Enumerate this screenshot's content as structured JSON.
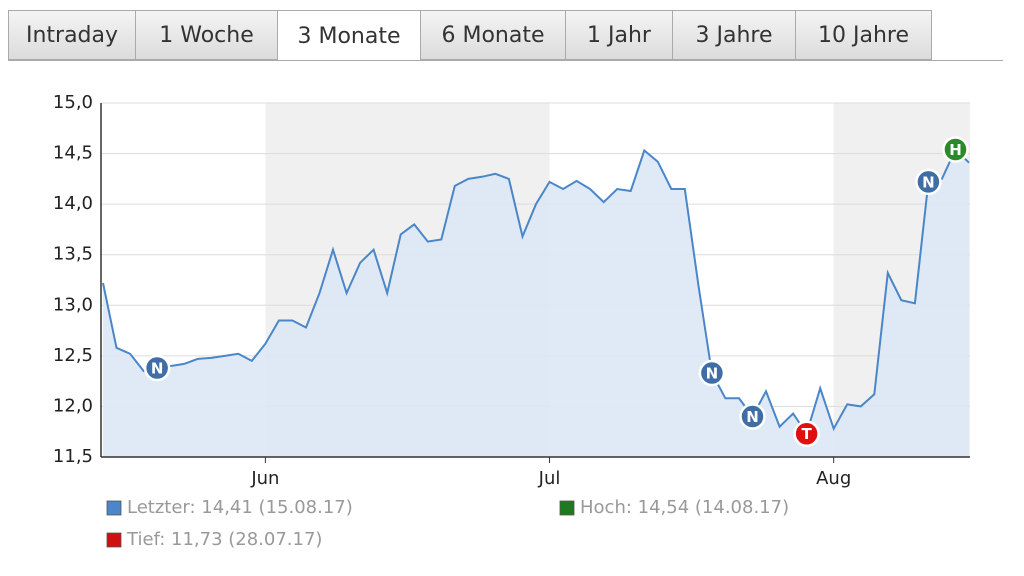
{
  "tabs": [
    "Intraday",
    "1 Woche",
    "3 Monate",
    "6 Monate",
    "1 Jahr",
    "3 Jahre",
    "10 Jahre"
  ],
  "active_tab": "3 Monate",
  "chart_data": {
    "type": "area",
    "color": "#4a86c8",
    "fill": "#dce8f5",
    "band_color": "#f0f0f0",
    "grid": true,
    "ylim": [
      11.5,
      15.0
    ],
    "yticks": [
      {
        "value": 11.5,
        "label": "11,5"
      },
      {
        "value": 12.0,
        "label": "12,0"
      },
      {
        "value": 12.5,
        "label": "12,5"
      },
      {
        "value": 13.0,
        "label": "13,0"
      },
      {
        "value": 13.5,
        "label": "13,5"
      },
      {
        "value": 14.0,
        "label": "14,0"
      },
      {
        "value": 14.5,
        "label": "14,5"
      },
      {
        "value": 15.0,
        "label": "15,0"
      }
    ],
    "categories": [
      null,
      null,
      null,
      null,
      null,
      null,
      null,
      null,
      null,
      null,
      null,
      null,
      "Jun",
      null,
      null,
      null,
      null,
      null,
      null,
      null,
      null,
      null,
      null,
      null,
      null,
      null,
      null,
      null,
      null,
      null,
      null,
      null,
      null,
      "Jul",
      null,
      null,
      null,
      null,
      null,
      null,
      null,
      null,
      null,
      null,
      null,
      null,
      null,
      null,
      null,
      null,
      null,
      null,
      null,
      null,
      "Aug",
      null,
      null,
      null,
      null,
      null,
      null,
      null,
      null,
      null,
      null
    ],
    "values": [
      13.22,
      12.58,
      12.52,
      12.35,
      12.38,
      12.4,
      12.42,
      12.47,
      12.48,
      12.5,
      12.52,
      12.45,
      12.62,
      12.85,
      12.85,
      12.78,
      13.12,
      13.55,
      13.12,
      13.42,
      13.55,
      13.12,
      13.7,
      13.8,
      13.63,
      13.65,
      14.18,
      14.25,
      14.27,
      14.3,
      14.25,
      13.68,
      14.0,
      14.22,
      14.15,
      14.23,
      14.15,
      14.02,
      14.15,
      14.13,
      14.53,
      14.42,
      14.15,
      14.15,
      13.2,
      12.33,
      12.08,
      12.08,
      11.9,
      12.15,
      11.8,
      11.93,
      11.73,
      12.18,
      11.78,
      12.02,
      12.0,
      12.12,
      13.32,
      13.05,
      13.02,
      14.22,
      14.25,
      14.54,
      14.41
    ],
    "point_labels": [
      null,
      null,
      null,
      null,
      "N",
      null,
      null,
      null,
      null,
      null,
      null,
      null,
      null,
      null,
      null,
      null,
      null,
      null,
      null,
      null,
      null,
      null,
      null,
      null,
      null,
      null,
      null,
      null,
      null,
      null,
      null,
      null,
      null,
      null,
      null,
      null,
      null,
      null,
      null,
      null,
      null,
      null,
      null,
      null,
      null,
      "N",
      null,
      null,
      "N",
      null,
      null,
      null,
      "T",
      null,
      null,
      null,
      null,
      null,
      null,
      null,
      null,
      "N",
      null,
      "H",
      null
    ],
    "marker_colors": {
      "N": "#3f6ea6",
      "T": "#e01010",
      "H": "#2a8a2a"
    },
    "legend": [
      {
        "label": "Letzter: 14,41 (15.08.17)",
        "color": "#4a86c8"
      },
      {
        "label": "Hoch: 14,54 (14.08.17)",
        "color": "#1f7a1f"
      },
      {
        "label": "Tief: 11,73 (28.07.17)",
        "color": "#d01010"
      }
    ]
  }
}
